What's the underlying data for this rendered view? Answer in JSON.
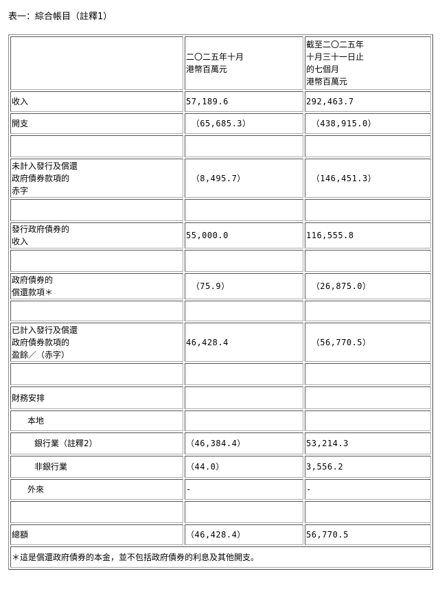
{
  "title": "表一：綜合帳目（註釋1）",
  "header": {
    "col2": [
      "二〇二五年十月",
      "港幣百萬元"
    ],
    "col3": [
      "截至二〇二五年",
      "十月三十一日止",
      "的七個月",
      "港幣百萬元"
    ]
  },
  "rows": [
    {
      "label": [
        "收入"
      ],
      "v1": "57,189.6",
      "v2": "292,463.7"
    },
    {
      "label": [
        "開支"
      ],
      "v1": " （65,685.3）",
      "v2": " （438,915.0）"
    },
    {
      "label": [],
      "v1": "",
      "v2": ""
    },
    {
      "label": [
        "未計入發行及償還",
        "政府債券款項的",
        "赤字"
      ],
      "v1": " （8,495.7）",
      "v2": " （146,451.3）"
    },
    {
      "label": [],
      "v1": "",
      "v2": ""
    },
    {
      "label": [
        "發行政府債券的",
        "收入"
      ],
      "v1": "55,000.0",
      "v2": "116,555.8"
    },
    {
      "label": [],
      "v1": "",
      "v2": ""
    },
    {
      "label": [
        "政府債券的",
        "償還款項＊"
      ],
      "v1": " （75.9）",
      "v2": " （26,875.0）"
    },
    {
      "label": [],
      "v1": "",
      "v2": ""
    },
    {
      "label": [
        "已計入發行及償還",
        "政府債券款項的",
        "盈餘／（赤字）"
      ],
      "v1": "46,428.4",
      "v2": " （56,770.5）"
    },
    {
      "label": [],
      "v1": "",
      "v2": ""
    },
    {
      "label": [
        "財務安排"
      ],
      "v1": "",
      "v2": ""
    },
    {
      "label": [
        "本地"
      ],
      "v1": "",
      "v2": "",
      "indent": 1
    },
    {
      "label": [
        "銀行業（註釋2）"
      ],
      "v1": "（46,384.4）",
      "v2": "53,214.3",
      "indent": 2
    },
    {
      "label": [
        "非銀行業"
      ],
      "v1": "（44.0）",
      "v2": "3,556.2",
      "indent": 2
    },
    {
      "label": [
        "外來"
      ],
      "v1": "-",
      "v2": "-",
      "indent": 1
    },
    {
      "label": [],
      "v1": "",
      "v2": ""
    },
    {
      "label": [
        "總額"
      ],
      "v1": "（46,428.4）",
      "v2": "56,770.5"
    }
  ],
  "footnote": "＊這是償還政府債券的本金，並不包括政府債券的利息及其他開支。"
}
